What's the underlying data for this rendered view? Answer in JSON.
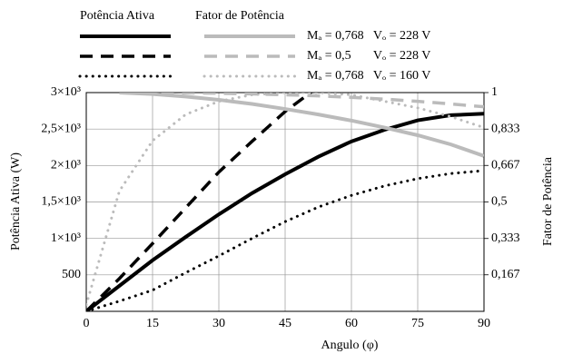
{
  "chart_data": {
    "type": "line",
    "legend": {
      "groups": [
        "Potência Ativa",
        "Fator de Potência"
      ],
      "rows": [
        "Mₐ = 0,768   Vₒ = 228 V",
        "Mₐ = 0,5       Vₒ = 228 V",
        "Mₐ = 0,768   Vₒ = 160 V"
      ]
    },
    "x_label": "Angulo (φ)",
    "y_label": "Potência Ativa (W)",
    "y2_label": "Fator de Potência",
    "x": [
      0,
      7.5,
      15,
      22.5,
      30,
      37.5,
      45,
      52.5,
      60,
      67.5,
      75,
      82.5,
      90
    ],
    "series": [
      {
        "color": "#000000",
        "dash": "solid",
        "values": [
          0,
          350,
          700,
          1020,
          1330,
          1620,
          1880,
          2120,
          2330,
          2490,
          2620,
          2690,
          2710
        ]
      },
      {
        "color": "#000000",
        "dash": "dashed",
        "values": [
          0,
          450,
          930,
          1420,
          1910,
          2330,
          2740,
          3080,
          null,
          null,
          null,
          null,
          null
        ]
      },
      {
        "color": "#000000",
        "dash": "dotted",
        "values": [
          0,
          140,
          290,
          530,
          760,
          1000,
          1230,
          1430,
          1590,
          1720,
          1820,
          1890,
          1930
        ]
      },
      {
        "color": "#bbbbbb",
        "dash": "solid",
        "axis": "y2",
        "values": [
          null,
          1.0,
          0.993,
          0.982,
          0.967,
          0.948,
          0.925,
          0.9,
          0.872,
          0.84,
          0.805,
          0.763,
          0.71
        ]
      },
      {
        "color": "#bbbbbb",
        "dash": "dashed",
        "axis": "y2",
        "values": [
          null,
          1.0,
          1.0,
          0.999,
          0.997,
          0.994,
          0.99,
          0.985,
          0.978,
          0.97,
          0.96,
          0.948,
          0.935
        ]
      },
      {
        "color": "#bbbbbb",
        "dash": "dotted",
        "axis": "y2",
        "values": [
          0.03,
          0.55,
          0.78,
          0.9,
          0.96,
          0.99,
          1.0,
          1.0,
          0.99,
          0.96,
          0.93,
          0.89,
          0.84
        ]
      }
    ],
    "xlim": [
      0,
      90
    ],
    "xticks": [
      0,
      15,
      30,
      45,
      60,
      75,
      90
    ],
    "ylim": [
      0,
      3000
    ],
    "yticks": [
      500,
      {
        "value": 1000,
        "label": "1×10³"
      },
      {
        "value": 1500,
        "label": "1,5×10³"
      },
      {
        "value": 2000,
        "label": "2×10³"
      },
      {
        "value": 2500,
        "label": "2,5×10³"
      },
      {
        "value": 3000,
        "label": "3×10³"
      }
    ],
    "y2lim": [
      0,
      1
    ],
    "y2ticks": [
      {
        "value": 0.167,
        "label": "0,167"
      },
      {
        "value": 0.333,
        "label": "0,333"
      },
      {
        "value": 0.5,
        "label": "0,5"
      },
      {
        "value": 0.667,
        "label": "0,667"
      },
      {
        "value": 0.833,
        "label": "0,833"
      },
      1
    ],
    "grid": true
  }
}
